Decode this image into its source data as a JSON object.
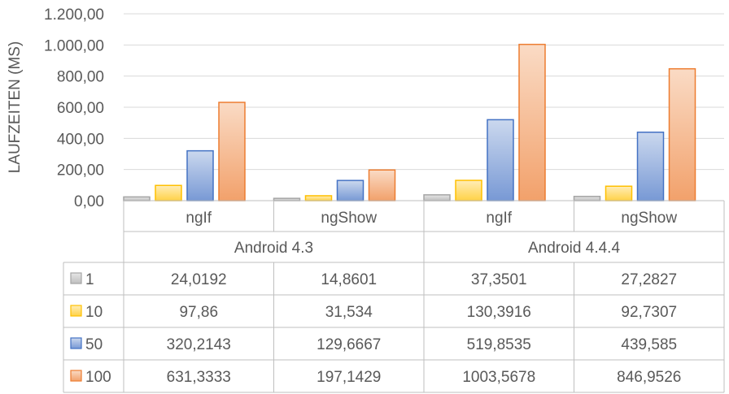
{
  "chart_data": {
    "type": "bar",
    "ylabel": "LAUFZEITEN (MS)",
    "ylim": [
      0,
      1200
    ],
    "y_ticks": [
      "0,00",
      "200,00",
      "400,00",
      "600,00",
      "800,00",
      "1.000,00",
      "1.200,00"
    ],
    "grid": true,
    "categories": [
      "ngIf",
      "ngShow",
      "ngIf",
      "ngShow"
    ],
    "groups": [
      {
        "label": "Android 4.3",
        "span": 2
      },
      {
        "label": "Android 4.4.4",
        "span": 2
      }
    ],
    "series": [
      {
        "name": "1",
        "color": "#a5a5a5",
        "values": [
          24.0192,
          14.8601,
          37.3501,
          27.2827
        ],
        "labels": [
          "24,0192",
          "14,8601",
          "37,3501",
          "27,2827"
        ]
      },
      {
        "name": "10",
        "color": "#ffc000",
        "values": [
          97.86,
          31.534,
          130.3916,
          92.7307
        ],
        "labels": [
          "97,86",
          "31,534",
          "130,3916",
          "92,7307"
        ]
      },
      {
        "name": "50",
        "color": "#4472c4",
        "values": [
          320.2143,
          129.6667,
          519.8535,
          439.585
        ],
        "labels": [
          "320,2143",
          "129,6667",
          "519,8535",
          "439,585"
        ]
      },
      {
        "name": "100",
        "color": "#ed7d31",
        "values": [
          631.3333,
          197.1429,
          1003.5678,
          846.9526
        ],
        "labels": [
          "631,3333",
          "197,1429",
          "1003,5678",
          "846,9526"
        ]
      }
    ],
    "legend": "data-table"
  }
}
